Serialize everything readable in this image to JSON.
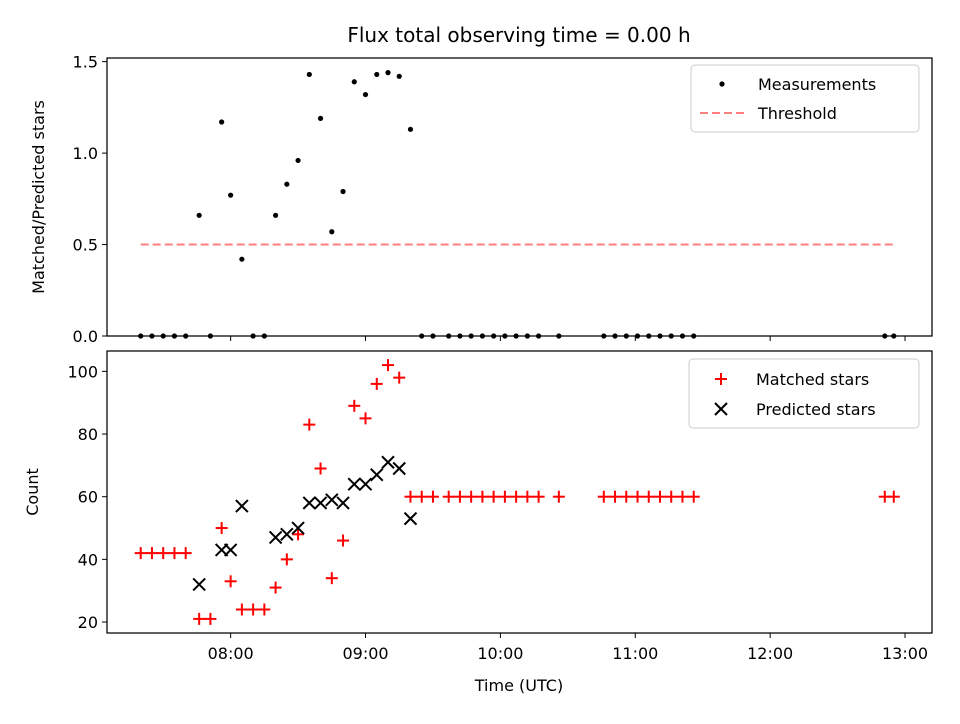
{
  "figure": {
    "title": "Flux total observing time = 0.00 h"
  },
  "colors": {
    "measurement": "#000000",
    "threshold": "#ff7f7f",
    "matched": "#ff0000",
    "predicted": "#000000"
  },
  "chart_data": [
    {
      "type": "scatter",
      "title": "Flux total observing time = 0.00 h",
      "xlabel": "",
      "ylabel": "Matched/Predicted stars",
      "xlim": [
        "07:05",
        "13:12"
      ],
      "ylim": [
        0,
        1.52
      ],
      "x_ticks": [
        "08:00",
        "09:00",
        "10:00",
        "11:00",
        "12:00",
        "13:00"
      ],
      "y_ticks": [
        "0.0",
        "0.5",
        "1.0",
        "1.5"
      ],
      "y_tick_values": [
        0,
        0.5,
        1.0,
        1.5
      ],
      "legend_position": "top-right",
      "legend": [
        {
          "label": "Measurements",
          "marker": "dot"
        },
        {
          "label": "Threshold",
          "marker": "dashed-line"
        }
      ],
      "threshold": {
        "y": 0.5,
        "x_start": "07:20",
        "x_end": "12:55"
      },
      "series": [
        {
          "name": "Measurements",
          "points": [
            [
              "07:20",
              0
            ],
            [
              "07:25",
              0
            ],
            [
              "07:30",
              0
            ],
            [
              "07:35",
              0
            ],
            [
              "07:40",
              0
            ],
            [
              "07:46",
              0.66
            ],
            [
              "07:51",
              0
            ],
            [
              "07:56",
              1.17
            ],
            [
              "08:00",
              0.77
            ],
            [
              "08:05",
              0.42
            ],
            [
              "08:10",
              0
            ],
            [
              "08:15",
              0
            ],
            [
              "08:20",
              0.66
            ],
            [
              "08:25",
              0.83
            ],
            [
              "08:30",
              0.96
            ],
            [
              "08:35",
              1.43
            ],
            [
              "08:40",
              1.19
            ],
            [
              "08:45",
              0.57
            ],
            [
              "08:50",
              0.79
            ],
            [
              "08:55",
              1.39
            ],
            [
              "09:00",
              1.32
            ],
            [
              "09:05",
              1.43
            ],
            [
              "09:10",
              1.44
            ],
            [
              "09:15",
              1.42
            ],
            [
              "09:20",
              1.13
            ],
            [
              "09:25",
              0
            ],
            [
              "09:30",
              0
            ],
            [
              "09:37",
              0
            ],
            [
              "09:42",
              0
            ],
            [
              "09:47",
              0
            ],
            [
              "09:52",
              0
            ],
            [
              "09:57",
              0
            ],
            [
              "10:02",
              0
            ],
            [
              "10:07",
              0
            ],
            [
              "10:12",
              0
            ],
            [
              "10:17",
              0
            ],
            [
              "10:26",
              0
            ],
            [
              "10:46",
              0
            ],
            [
              "10:51",
              0
            ],
            [
              "10:56",
              0
            ],
            [
              "11:01",
              0
            ],
            [
              "11:06",
              0
            ],
            [
              "11:11",
              0
            ],
            [
              "11:16",
              0
            ],
            [
              "11:21",
              0
            ],
            [
              "11:26",
              0
            ],
            [
              "12:51",
              0
            ],
            [
              "12:55",
              0
            ]
          ]
        }
      ]
    },
    {
      "type": "scatter",
      "xlabel": "Time (UTC)",
      "ylabel": "Count",
      "xlim": [
        "07:05",
        "13:12"
      ],
      "ylim": [
        16.5,
        106.5
      ],
      "x_ticks": [
        "08:00",
        "09:00",
        "10:00",
        "11:00",
        "12:00",
        "13:00"
      ],
      "y_ticks": [
        "20",
        "40",
        "60",
        "80",
        "100"
      ],
      "y_tick_values": [
        20,
        40,
        60,
        80,
        100
      ],
      "legend_position": "top-right",
      "legend": [
        {
          "label": "Matched stars",
          "marker": "plus"
        },
        {
          "label": "Predicted stars",
          "marker": "x"
        }
      ],
      "series": [
        {
          "name": "Matched stars",
          "points": [
            [
              "07:20",
              42
            ],
            [
              "07:25",
              42
            ],
            [
              "07:30",
              42
            ],
            [
              "07:35",
              42
            ],
            [
              "07:40",
              42
            ],
            [
              "07:46",
              21
            ],
            [
              "07:51",
              21
            ],
            [
              "07:56",
              50
            ],
            [
              "08:00",
              33
            ],
            [
              "08:05",
              24
            ],
            [
              "08:10",
              24
            ],
            [
              "08:15",
              24
            ],
            [
              "08:20",
              31
            ],
            [
              "08:25",
              40
            ],
            [
              "08:30",
              48
            ],
            [
              "08:35",
              83
            ],
            [
              "08:40",
              69
            ],
            [
              "08:45",
              34
            ],
            [
              "08:50",
              46
            ],
            [
              "08:55",
              89
            ],
            [
              "09:00",
              85
            ],
            [
              "09:05",
              96
            ],
            [
              "09:10",
              102
            ],
            [
              "09:15",
              98
            ],
            [
              "09:20",
              60
            ],
            [
              "09:25",
              60
            ],
            [
              "09:30",
              60
            ],
            [
              "09:37",
              60
            ],
            [
              "09:42",
              60
            ],
            [
              "09:47",
              60
            ],
            [
              "09:52",
              60
            ],
            [
              "09:57",
              60
            ],
            [
              "10:02",
              60
            ],
            [
              "10:07",
              60
            ],
            [
              "10:12",
              60
            ],
            [
              "10:17",
              60
            ],
            [
              "10:26",
              60
            ],
            [
              "10:46",
              60
            ],
            [
              "10:51",
              60
            ],
            [
              "10:56",
              60
            ],
            [
              "11:01",
              60
            ],
            [
              "11:06",
              60
            ],
            [
              "11:11",
              60
            ],
            [
              "11:16",
              60
            ],
            [
              "11:21",
              60
            ],
            [
              "11:26",
              60
            ],
            [
              "12:51",
              60
            ],
            [
              "12:55",
              60
            ]
          ]
        },
        {
          "name": "Predicted stars",
          "points": [
            [
              "07:46",
              32
            ],
            [
              "07:56",
              43
            ],
            [
              "08:00",
              43
            ],
            [
              "08:05",
              57
            ],
            [
              "08:20",
              47
            ],
            [
              "08:25",
              48
            ],
            [
              "08:30",
              50
            ],
            [
              "08:35",
              58
            ],
            [
              "08:40",
              58
            ],
            [
              "08:45",
              59
            ],
            [
              "08:50",
              58
            ],
            [
              "08:55",
              64
            ],
            [
              "09:00",
              64
            ],
            [
              "09:05",
              67
            ],
            [
              "09:10",
              71
            ],
            [
              "09:15",
              69
            ],
            [
              "09:20",
              53
            ]
          ]
        }
      ]
    }
  ]
}
